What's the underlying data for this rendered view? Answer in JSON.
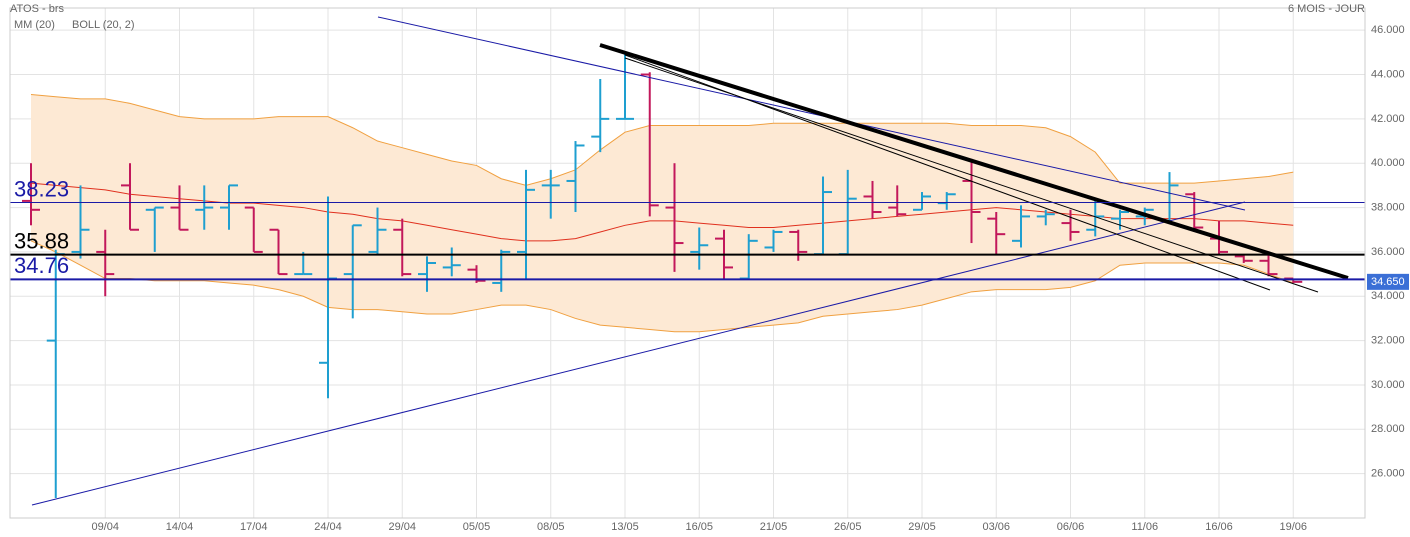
{
  "chart_data": {
    "type": "ohlc",
    "title": "ATOS - brs",
    "period": "6 MOIS - JOUR",
    "up_color": "#1e9fd0",
    "down_color": "#c2185b",
    "categories": [
      null,
      null,
      null,
      "09/04",
      null,
      null,
      "14/04",
      null,
      null,
      "17/04",
      null,
      null,
      "24/04",
      null,
      null,
      "29/04",
      null,
      null,
      "05/05",
      null,
      null,
      "08/05",
      null,
      null,
      "13/05",
      null,
      null,
      "16/05",
      null,
      null,
      "21/05",
      null,
      null,
      "26/05",
      null,
      null,
      "29/05",
      null,
      null,
      "03/06",
      null,
      null,
      "06/06",
      null,
      null,
      "11/06",
      null,
      null,
      "16/06",
      null,
      null,
      "19/06"
    ],
    "open": [
      38.3,
      32.0,
      36.0,
      36.0,
      39.0,
      37.9,
      38.0,
      37.9,
      38.0,
      38.0,
      37.0,
      35.0,
      31.0,
      35.0,
      36.0,
      37.0,
      35.0,
      35.3,
      35.2,
      34.6,
      36.0,
      39.0,
      39.2,
      41.2,
      42.0,
      44.0,
      38.0,
      36.0,
      36.6,
      34.8,
      36.2,
      36.9,
      35.9,
      35.9,
      38.5,
      38.0,
      37.9,
      38.2,
      39.2,
      37.5,
      36.5,
      37.6,
      37.3,
      37.0,
      37.5,
      37.6,
      37.4,
      38.6,
      36.6,
      35.8,
      35.6,
      34.8
    ],
    "high": [
      40.0,
      36.1,
      39.0,
      37.0,
      40.0,
      38.0,
      39.0,
      39.0,
      39.0,
      38.0,
      37.0,
      36.0,
      38.5,
      37.2,
      38.0,
      37.5,
      35.8,
      36.2,
      35.4,
      36.1,
      39.7,
      39.7,
      41.0,
      43.8,
      44.9,
      44.1,
      40.0,
      37.1,
      37.0,
      36.8,
      37.0,
      37.0,
      39.4,
      39.7,
      39.2,
      39.0,
      38.7,
      38.7,
      40.2,
      37.8,
      38.1,
      37.9,
      37.9,
      38.3,
      37.9,
      38.0,
      39.6,
      38.7,
      37.4,
      35.9,
      35.9,
      34.8
    ],
    "low": [
      37.2,
      24.9,
      35.7,
      34.0,
      37.0,
      36.0,
      37.0,
      37.0,
      37.0,
      36.0,
      35.0,
      35.0,
      29.4,
      33.0,
      35.9,
      34.9,
      34.2,
      34.9,
      34.6,
      34.2,
      34.8,
      37.5,
      37.8,
      40.5,
      42.0,
      37.6,
      35.1,
      35.2,
      34.8,
      34.8,
      36.0,
      35.6,
      35.9,
      35.9,
      37.5,
      37.6,
      37.9,
      37.9,
      36.4,
      35.9,
      36.2,
      37.2,
      36.5,
      36.7,
      37.0,
      37.2,
      37.3,
      36.9,
      35.9,
      35.5,
      34.9,
      34.6
    ],
    "close": [
      37.9,
      35.9,
      37.0,
      35.0,
      37.0,
      38.0,
      37.0,
      38.0,
      39.0,
      36.0,
      35.0,
      35.0,
      34.8,
      37.2,
      37.0,
      35.0,
      35.5,
      35.4,
      34.7,
      36.0,
      38.8,
      39.0,
      40.8,
      42.0,
      42.0,
      38.1,
      36.4,
      36.3,
      35.3,
      36.5,
      36.9,
      36.0,
      38.7,
      38.4,
      37.8,
      37.7,
      38.5,
      38.6,
      37.8,
      36.8,
      37.6,
      37.7,
      36.9,
      37.6,
      37.8,
      37.9,
      39.0,
      37.1,
      36.0,
      35.6,
      35.0,
      34.65
    ],
    "ma": {
      "name": "MM (20)",
      "color": "#e0301e",
      "values": [
        39.1,
        39.0,
        38.9,
        38.8,
        38.6,
        38.5,
        38.4,
        38.3,
        38.2,
        38.2,
        38.1,
        38.0,
        37.8,
        37.7,
        37.5,
        37.4,
        37.2,
        37.0,
        36.8,
        36.6,
        36.5,
        36.5,
        36.6,
        36.9,
        37.2,
        37.4,
        37.4,
        37.3,
        37.2,
        37.1,
        37.1,
        37.2,
        37.3,
        37.4,
        37.5,
        37.6,
        37.7,
        37.8,
        37.9,
        38.0,
        37.9,
        37.8,
        37.7,
        37.6,
        37.5,
        37.5,
        37.5,
        37.5,
        37.4,
        37.4,
        37.3,
        37.2
      ]
    },
    "bollinger": {
      "name": "BOLL (20, 2)",
      "color": "#f0a040",
      "fill": "#fde9d4",
      "upper": [
        43.1,
        43.0,
        42.9,
        42.9,
        42.7,
        42.4,
        42.1,
        42.0,
        42.0,
        42.0,
        42.1,
        42.1,
        42.1,
        41.6,
        41.0,
        40.7,
        40.4,
        40.1,
        39.9,
        39.3,
        39.0,
        39.3,
        39.7,
        40.6,
        41.4,
        41.7,
        41.7,
        41.7,
        41.7,
        41.7,
        41.8,
        41.8,
        41.8,
        41.8,
        41.8,
        41.8,
        41.8,
        41.8,
        41.7,
        41.7,
        41.7,
        41.6,
        41.2,
        40.5,
        39.1,
        39.1,
        39.1,
        39.1,
        39.2,
        39.3,
        39.4,
        39.6
      ],
      "lower": [
        36.5,
        36.0,
        35.4,
        34.8,
        34.8,
        34.7,
        34.7,
        34.7,
        34.6,
        34.5,
        34.3,
        34.0,
        33.5,
        33.4,
        33.4,
        33.3,
        33.2,
        33.2,
        33.4,
        33.6,
        33.6,
        33.4,
        33.0,
        32.7,
        32.6,
        32.5,
        32.4,
        32.4,
        32.5,
        32.6,
        32.7,
        32.8,
        33.1,
        33.2,
        33.3,
        33.4,
        33.6,
        33.9,
        34.2,
        34.3,
        34.3,
        34.3,
        34.4,
        34.7,
        35.4,
        35.5,
        35.5,
        35.5,
        35.5,
        35.4,
        35.0,
        34.6
      ]
    },
    "levels": [
      {
        "value": 38.23,
        "color": "#1a1aa6",
        "width": 1
      },
      {
        "value": 35.88,
        "color": "#000000",
        "width": 2
      },
      {
        "value": 34.76,
        "color": "#1a1aa6",
        "width": 2
      }
    ],
    "last_price": {
      "value": 34.65,
      "label": "34.650",
      "color": "#3b6fd6"
    },
    "ylim": [
      24,
      47
    ],
    "yticks": [
      {
        "value": 26,
        "label": "26.000"
      },
      {
        "value": 28,
        "label": "28.000"
      },
      {
        "value": 30,
        "label": "30.000"
      },
      {
        "value": 32,
        "label": "32.000"
      },
      {
        "value": 34,
        "label": "34.000"
      },
      {
        "value": 36,
        "label": "36.000"
      },
      {
        "value": 38,
        "label": "38.000"
      },
      {
        "value": 40,
        "label": "40.000"
      },
      {
        "value": 42,
        "label": "42.000"
      },
      {
        "value": 44,
        "label": "44.000"
      },
      {
        "value": 46,
        "label": "46.000"
      }
    ],
    "grid": true
  }
}
